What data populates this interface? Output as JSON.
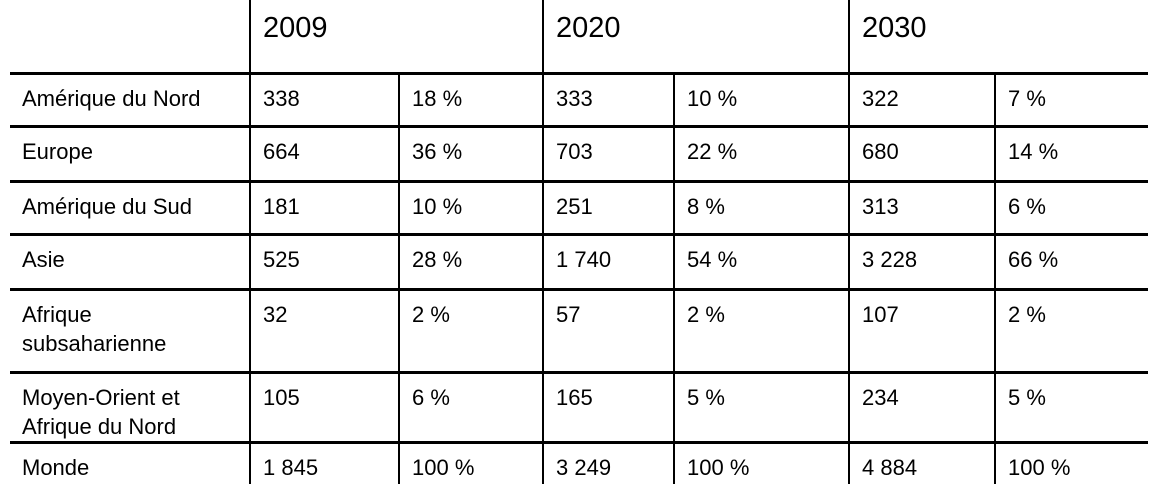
{
  "table": {
    "header": {
      "corner": "",
      "years": [
        "2009",
        "2020",
        "2030"
      ]
    },
    "rows": [
      {
        "label": "Amérique du Nord",
        "cells": [
          "338",
          "18 %",
          "333",
          "10 %",
          "322",
          "7 %"
        ]
      },
      {
        "label": "Europe",
        "cells": [
          "664",
          "36 %",
          "703",
          "22 %",
          "680",
          "14 %"
        ]
      },
      {
        "label": "Amérique du Sud",
        "cells": [
          "181",
          "10 %",
          "251",
          "8 %",
          "313",
          "6 %"
        ]
      },
      {
        "label": "Asie",
        "cells": [
          "525",
          "28 %",
          "1 740",
          "54 %",
          "3 228",
          "66 %"
        ]
      },
      {
        "label": "Afrique subsaharienne",
        "cells": [
          "32",
          "2 %",
          "57",
          "2 %",
          "107",
          "2 %"
        ]
      },
      {
        "label": "Moyen-Orient et Afrique du Nord",
        "cells": [
          "105",
          "6 %",
          "165",
          "5 %",
          "234",
          "5 %"
        ]
      },
      {
        "label": "Monde",
        "cells": [
          "1 845",
          "100 %",
          "3 249",
          "100 %",
          "4 884",
          "100 %"
        ]
      }
    ]
  },
  "chart_data": {
    "type": "table",
    "title": "",
    "categories": [
      "Amérique du Nord",
      "Europe",
      "Amérique du Sud",
      "Asie",
      "Afrique subsaharienne",
      "Moyen-Orient et Afrique du Nord",
      "Monde"
    ],
    "series": [
      {
        "name": "2009",
        "values": [
          338,
          664,
          181,
          525,
          32,
          105,
          1845
        ],
        "shares_pct": [
          18,
          36,
          10,
          28,
          2,
          6,
          100
        ]
      },
      {
        "name": "2020",
        "values": [
          333,
          703,
          251,
          1740,
          57,
          165,
          3249
        ],
        "shares_pct": [
          10,
          22,
          8,
          54,
          2,
          5,
          100
        ]
      },
      {
        "name": "2030",
        "values": [
          322,
          680,
          313,
          3228,
          107,
          234,
          4884
        ],
        "shares_pct": [
          7,
          14,
          6,
          66,
          2,
          5,
          100
        ]
      }
    ],
    "layout": {
      "columns_per_year": [
        "value",
        "share_pct"
      ],
      "grid": "on",
      "outer_top_bottom_border": "off"
    }
  },
  "colors": {
    "background": "#ffffff",
    "text": "#000000",
    "border": "#000000"
  }
}
